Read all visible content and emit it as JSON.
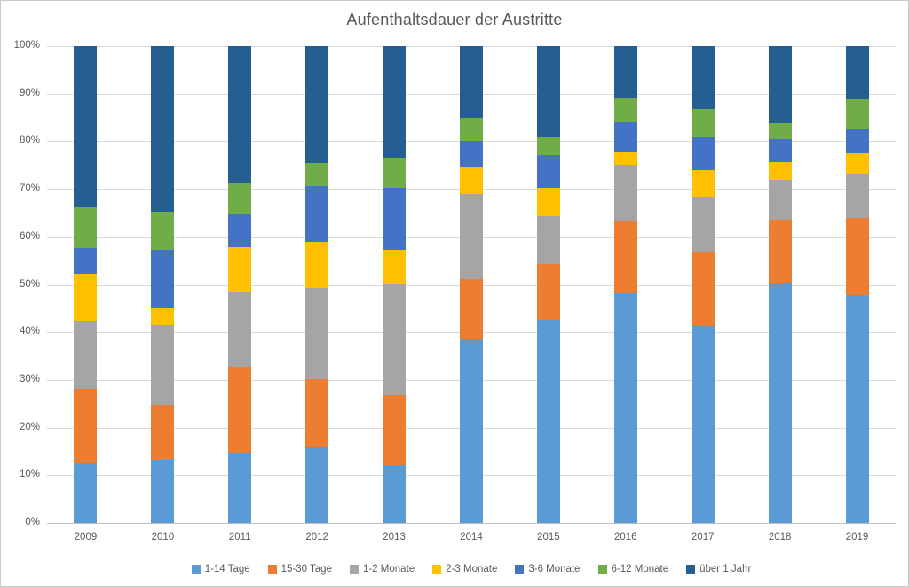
{
  "chart_data": {
    "type": "bar",
    "subtype": "stacked-100-percent",
    "title": "Aufenthaltsdauer der Austritte",
    "categories": [
      "2009",
      "2010",
      "2011",
      "2012",
      "2013",
      "2014",
      "2015",
      "2016",
      "2017",
      "2018",
      "2019"
    ],
    "series": [
      {
        "name": "1-14 Tage",
        "color": "#5B9BD5",
        "values": [
          12.6,
          13.3,
          14.7,
          16.1,
          12.2,
          38.5,
          42.6,
          48.2,
          41.4,
          50.2,
          47.8
        ]
      },
      {
        "name": "15-30 Tage",
        "color": "#ED7D31",
        "values": [
          15.6,
          11.5,
          18.1,
          14.1,
          14.7,
          12.7,
          11.7,
          15.1,
          15.4,
          13.3,
          16.0
        ]
      },
      {
        "name": "1-2 Monate",
        "color": "#A5A5A5",
        "values": [
          14.0,
          16.7,
          15.7,
          19.2,
          23.2,
          17.8,
          10.2,
          11.8,
          11.5,
          8.4,
          9.3
        ]
      },
      {
        "name": "2-3 Monate",
        "color": "#FFC000",
        "values": [
          10.0,
          3.6,
          9.5,
          9.7,
          7.2,
          5.6,
          5.7,
          2.7,
          5.9,
          3.9,
          4.6
        ]
      },
      {
        "name": "3-6 Monate",
        "color": "#4472C4",
        "values": [
          5.6,
          12.3,
          6.8,
          11.6,
          13.0,
          5.5,
          7.0,
          6.4,
          6.8,
          4.8,
          5.0
        ]
      },
      {
        "name": "6-12 Monate",
        "color": "#70AD47",
        "values": [
          8.5,
          7.7,
          6.5,
          4.8,
          6.2,
          4.9,
          3.8,
          5.0,
          5.7,
          3.4,
          6.2
        ]
      },
      {
        "name": "über 1 Jahr",
        "color": "#255E91",
        "values": [
          33.7,
          34.9,
          28.7,
          24.5,
          23.5,
          15.0,
          19.0,
          10.8,
          13.3,
          16.0,
          11.1
        ]
      }
    ],
    "y_ticks": [
      "100%",
      "90%",
      "80%",
      "70%",
      "60%",
      "50%",
      "40%",
      "30%",
      "20%",
      "10%",
      "0%"
    ],
    "ylim": [
      0,
      100
    ],
    "grid": true,
    "legend_position": "bottom",
    "colors": {
      "text": "#595959",
      "gridline": "#D9D9D9",
      "axis_line": "#BFBFBF",
      "background": "#FFFFFF"
    }
  }
}
